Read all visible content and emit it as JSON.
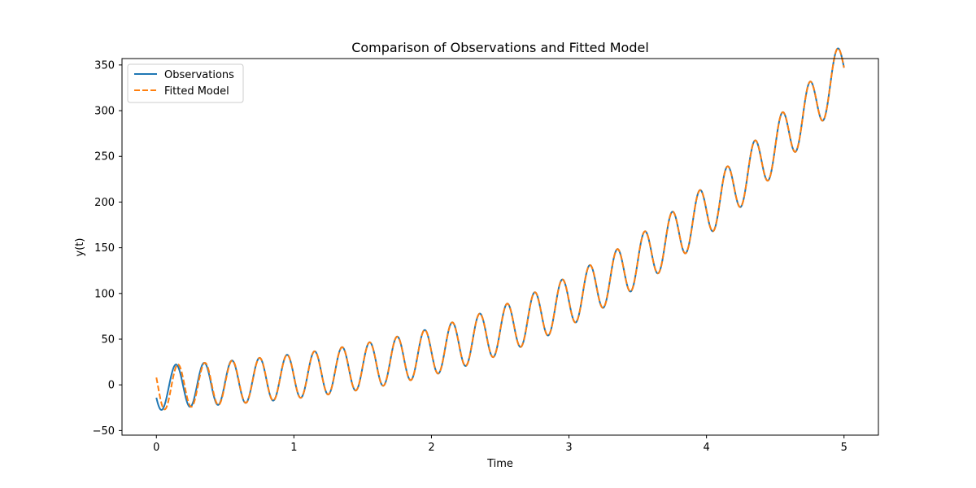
{
  "chart_data": {
    "type": "line",
    "title": "Comparison of Observations and Fitted Model",
    "xlabel": "Time",
    "ylabel": "y(t)",
    "xlim": [
      -0.25,
      5.25
    ],
    "ylim": [
      -55,
      357
    ],
    "xticks": [
      0,
      1,
      2,
      3,
      4,
      5
    ],
    "xtick_labels": [
      "0",
      "1",
      "2",
      "3",
      "4",
      "5"
    ],
    "yticks": [
      -50,
      0,
      50,
      100,
      150,
      200,
      250,
      300,
      350
    ],
    "ytick_labels": [
      "−50",
      "0",
      "50",
      "100",
      "150",
      "200",
      "250",
      "300",
      "350"
    ],
    "grid": false,
    "legend_position": "top-left",
    "series": [
      {
        "name": "Observations",
        "color": "#1f77b4",
        "style": "solid",
        "trend": {
          "a": 8,
          "b": 3.6,
          "c": 1.7,
          "d": 0
        },
        "oscillation": {
          "frequency": 5,
          "amplitude": 20,
          "transient_amplitude": -5,
          "transient_decay": 5
        },
        "x_range": [
          0,
          5
        ]
      },
      {
        "name": "Fitted Model",
        "color": "#ff7f0e",
        "style": "dashed",
        "trend": {
          "a": 8,
          "b": 3.6,
          "c": 1.7,
          "d": 0
        },
        "oscillation": {
          "frequency": 5,
          "amplitude": 20,
          "transient_amplitude": 5,
          "transient_decay": 5
        },
        "x_range": [
          0,
          5
        ]
      }
    ]
  }
}
